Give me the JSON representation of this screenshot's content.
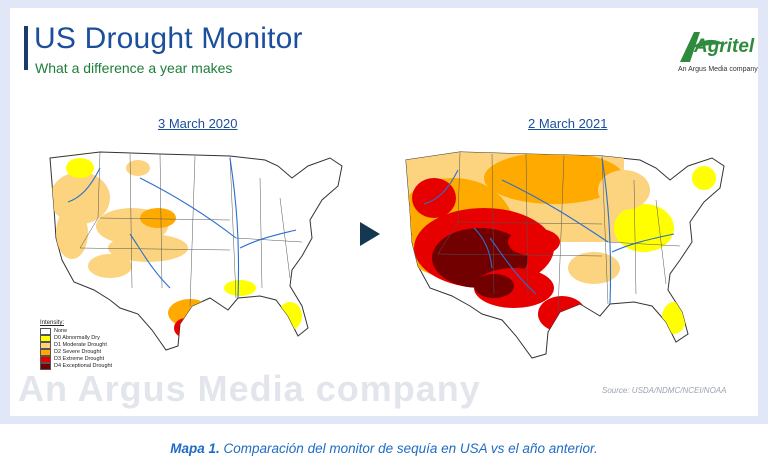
{
  "header": {
    "title": "US Drought Monitor",
    "subtitle": "What a difference a year makes"
  },
  "logo": {
    "wordmark": "Agritel",
    "tagline": "An Argus Media company"
  },
  "maps": [
    {
      "date": "3 March 2020"
    },
    {
      "date": "2 March 2021"
    }
  ],
  "legend": {
    "title": "Intensity:",
    "items": [
      {
        "label": "None",
        "color": "#ffffff"
      },
      {
        "label": "D0 Abnormally Dry",
        "color": "#ffff00"
      },
      {
        "label": "D1 Moderate Drought",
        "color": "#fcd37f"
      },
      {
        "label": "D2 Severe Drought",
        "color": "#ffaa00"
      },
      {
        "label": "D3 Extreme Drought",
        "color": "#e60000"
      },
      {
        "label": "D4 Exceptional Drought",
        "color": "#730000"
      }
    ]
  },
  "watermark": "An Argus Media company",
  "source": "Source: USDA/NDMC/NCEI/NOAA",
  "caption": {
    "label": "Mapa 1.",
    "text": " Comparación del monitor de sequía en USA vs el año anterior."
  },
  "colors": {
    "title": "#1b4f9c",
    "subtitle": "#1f7d3a",
    "caption": "#1f6cc4",
    "river": "#2a6fd0"
  }
}
